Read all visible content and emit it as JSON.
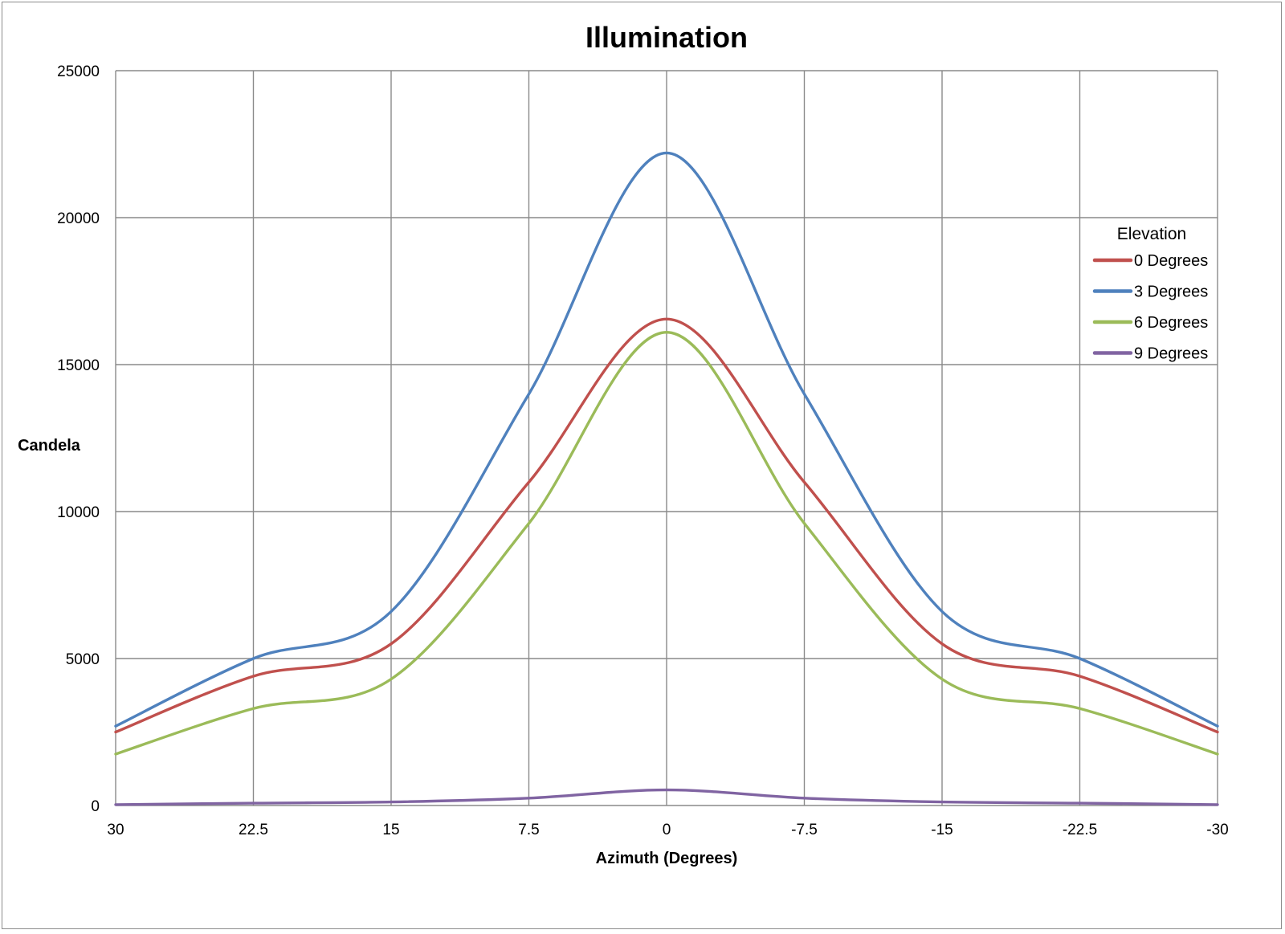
{
  "chart_data": {
    "type": "line",
    "title": "Illumination",
    "xlabel": "Azimuth (Degrees)",
    "ylabel": "Candela",
    "x": [
      30,
      22.5,
      15,
      7.5,
      0,
      -7.5,
      -15,
      -22.5,
      -30
    ],
    "x_tick_labels": [
      "30",
      "22.5",
      "15",
      "7.5",
      "0",
      "-7.5",
      "-15",
      "-22.5",
      "-30"
    ],
    "xlim": [
      30,
      -30
    ],
    "ylim": [
      0,
      25000
    ],
    "y_ticks": [
      0,
      5000,
      10000,
      15000,
      20000,
      25000
    ],
    "y_tick_labels": [
      "0",
      "5000",
      "10000",
      "15000",
      "20000",
      "25000"
    ],
    "grid": true,
    "smooth": true,
    "legend": {
      "title": "Elevation",
      "position": "right"
    },
    "series": [
      {
        "name": "0 Degrees",
        "color": "#c0504d",
        "values": [
          2500,
          4400,
          5500,
          11000,
          16550,
          11000,
          5500,
          4400,
          2500
        ]
      },
      {
        "name": "3 Degrees",
        "color": "#4f81bd",
        "values": [
          2700,
          5000,
          6600,
          14000,
          22200,
          14000,
          6600,
          5000,
          2700
        ]
      },
      {
        "name": "6 Degrees",
        "color": "#9bbb59",
        "values": [
          1750,
          3300,
          4300,
          9600,
          16100,
          9600,
          4300,
          3300,
          1750
        ]
      },
      {
        "name": "9 Degrees",
        "color": "#8064a2",
        "values": [
          30,
          80,
          120,
          250,
          530,
          250,
          120,
          80,
          30
        ]
      }
    ]
  }
}
